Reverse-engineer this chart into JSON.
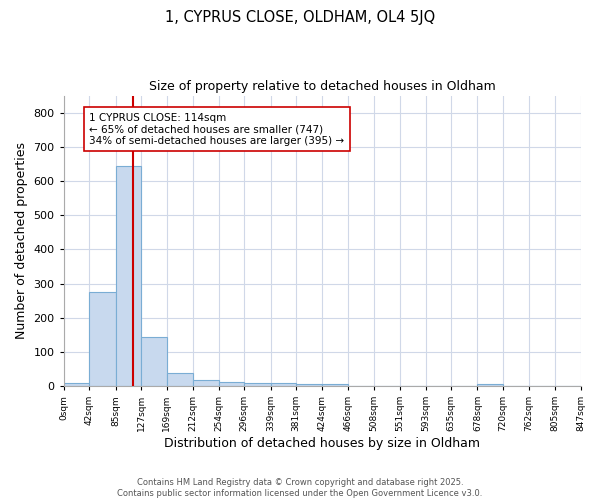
{
  "title1": "1, CYPRUS CLOSE, OLDHAM, OL4 5JQ",
  "title2": "Size of property relative to detached houses in Oldham",
  "xlabel": "Distribution of detached houses by size in Oldham",
  "ylabel": "Number of detached properties",
  "bar_edges": [
    0,
    42,
    85,
    127,
    169,
    212,
    254,
    296,
    339,
    381,
    424,
    466,
    508,
    551,
    593,
    635,
    678,
    720,
    762,
    805,
    847
  ],
  "bar_heights": [
    8,
    275,
    645,
    143,
    38,
    18,
    12,
    10,
    10,
    7,
    5,
    0,
    0,
    0,
    0,
    0,
    5,
    0,
    0,
    0
  ],
  "bar_color": "#c8d9ee",
  "bar_edge_color": "#7aadd4",
  "property_size": 114,
  "vline_color": "#cc0000",
  "annotation_line1": "1 CYPRUS CLOSE: 114sqm",
  "annotation_line2": "← 65% of detached houses are smaller (747)",
  "annotation_line3": "34% of semi-detached houses are larger (395) →",
  "annotation_box_color": "#ffffff",
  "annotation_box_edge_color": "#cc0000",
  "ylim": [
    0,
    850
  ],
  "yticks": [
    0,
    100,
    200,
    300,
    400,
    500,
    600,
    700,
    800
  ],
  "tick_labels": [
    "0sqm",
    "42sqm",
    "85sqm",
    "127sqm",
    "169sqm",
    "212sqm",
    "254sqm",
    "296sqm",
    "339sqm",
    "381sqm",
    "424sqm",
    "466sqm",
    "508sqm",
    "551sqm",
    "593sqm",
    "635sqm",
    "678sqm",
    "720sqm",
    "762sqm",
    "805sqm",
    "847sqm"
  ],
  "footer": "Contains HM Land Registry data © Crown copyright and database right 2025.\nContains public sector information licensed under the Open Government Licence v3.0.",
  "bg_color": "#ffffff",
  "plot_bg_color": "#ffffff",
  "grid_color": "#d0d8e8"
}
